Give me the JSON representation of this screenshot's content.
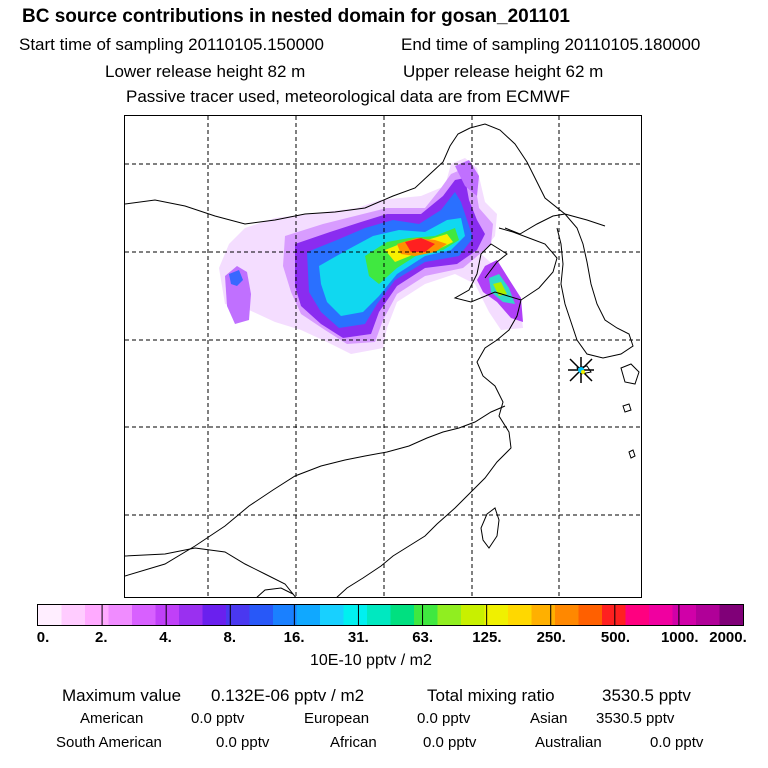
{
  "title": "BC  source contributions in nested domain for gosan_201101",
  "sampling": {
    "start": "Start time of sampling 20110105.150000",
    "end": "End time of sampling 20110105.180000"
  },
  "release": {
    "lower": "Lower release height   82 m",
    "upper": "Upper release height   62 m"
  },
  "tracer_note": "Passive tracer used, meteorological data are from ECMWF",
  "colorbar": {
    "colors": [
      "#ffeeff",
      "#ffccff",
      "#ffaaff",
      "#f08cff",
      "#d860ff",
      "#c040f8",
      "#9a30f0",
      "#6a20ee",
      "#4a38f0",
      "#2858f8",
      "#1a80ff",
      "#10a8ff",
      "#18d0ff",
      "#00f0f0",
      "#00e8c0",
      "#00e080",
      "#40e840",
      "#90ee20",
      "#c8f000",
      "#f0f000",
      "#ffd800",
      "#ffb000",
      "#ff8800",
      "#ff6000",
      "#ff2020",
      "#ff0080",
      "#f000a0",
      "#d000a8",
      "#b00098",
      "#800078"
    ],
    "tick_labels": [
      "0.",
      "2.",
      "4.",
      "8.",
      "16.",
      "31.",
      "63.",
      "125.",
      "250.",
      "500.",
      "1000.",
      "2000."
    ],
    "unit": "10E-10 pptv / m2"
  },
  "stats": {
    "max_label": "Maximum value",
    "max_value": "0.132E-06 pptv / m2",
    "total_label": "Total mixing ratio",
    "total_value": "3530.5 pptv",
    "regions": [
      {
        "name": "American",
        "value": "0.0 pptv"
      },
      {
        "name": "European",
        "value": "0.0 pptv"
      },
      {
        "name": "Asian",
        "value": "3530.5 pptv"
      },
      {
        "name": "South American",
        "value": "0.0 pptv"
      },
      {
        "name": "African",
        "value": "0.0 pptv"
      },
      {
        "name": "Australian",
        "value": "0.0 pptv"
      }
    ]
  }
}
